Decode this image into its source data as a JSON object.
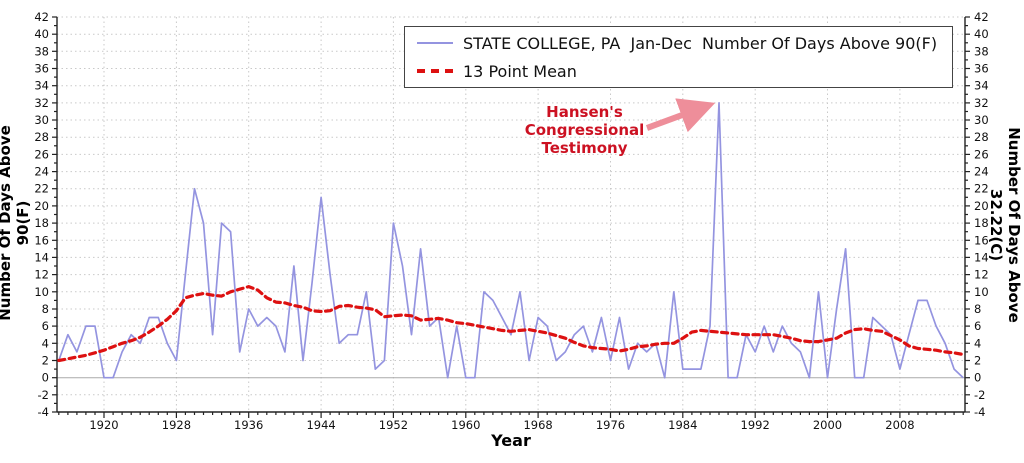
{
  "legend": {
    "series1": "STATE COLLEGE, PA  Jan-Dec  Number Of Days Above 90(F)",
    "series2": "13 Point Mean"
  },
  "annotation": {
    "line1": "Hansen's",
    "line2": "Congressional",
    "line3": "Testimony"
  },
  "axes": {
    "left_title": "Number Of Days Above 90(F)",
    "right_title": "Number Of Days Above 32.22(C)",
    "x_title": "Year",
    "y_min": -4,
    "y_max": 42,
    "y_label_step": 2,
    "x_label_start": 1920,
    "x_label_end": 2008,
    "x_label_step": 8
  },
  "colors": {
    "series_line": "#9494e0",
    "mean_line": "#dd1111",
    "annotation_text": "#cc1122",
    "arrow": "#ee8e9a",
    "grid": "#c9c9c9",
    "zero_line": "#aaaaaa",
    "axis": "#222222",
    "tick_label": "#111111",
    "background": "#ffffff"
  },
  "chart_data": {
    "type": "line",
    "title": "",
    "xlabel": "Year",
    "ylabel_left": "Number Of Days Above 90(F)",
    "ylabel_right": "Number Of Days Above 32.22(C)",
    "xlim": [
      1914.8,
      2015.2
    ],
    "ylim": [
      -4,
      42
    ],
    "grid": true,
    "legend_position": "top-center",
    "x": [
      1915,
      1916,
      1917,
      1918,
      1919,
      1920,
      1921,
      1922,
      1923,
      1924,
      1925,
      1926,
      1927,
      1928,
      1929,
      1930,
      1931,
      1932,
      1933,
      1934,
      1935,
      1936,
      1937,
      1938,
      1939,
      1940,
      1941,
      1942,
      1943,
      1944,
      1945,
      1946,
      1947,
      1948,
      1949,
      1950,
      1951,
      1952,
      1953,
      1954,
      1955,
      1956,
      1957,
      1958,
      1959,
      1960,
      1961,
      1962,
      1963,
      1964,
      1965,
      1966,
      1967,
      1968,
      1969,
      1970,
      1971,
      1972,
      1973,
      1974,
      1975,
      1976,
      1977,
      1978,
      1979,
      1980,
      1981,
      1982,
      1983,
      1984,
      1985,
      1986,
      1987,
      1988,
      1989,
      1990,
      1991,
      1992,
      1993,
      1994,
      1995,
      1996,
      1997,
      1998,
      1999,
      2000,
      2001,
      2002,
      2003,
      2004,
      2005,
      2006,
      2007,
      2008,
      2009,
      2010,
      2011,
      2012,
      2013,
      2014,
      2015
    ],
    "series": [
      {
        "name": "STATE COLLEGE, PA Jan-Dec Number Of Days Above 90(F)",
        "style": "solid",
        "values": [
          2,
          5,
          3,
          6,
          6,
          0,
          0,
          3,
          5,
          4,
          7,
          7,
          4,
          2,
          12,
          22,
          18,
          5,
          18,
          17,
          3,
          8,
          6,
          7,
          6,
          3,
          13,
          2,
          11,
          21,
          12,
          4,
          5,
          5,
          10,
          1,
          2,
          18,
          13,
          5,
          15,
          6,
          7,
          0,
          6,
          0,
          0,
          10,
          9,
          7,
          5,
          10,
          2,
          7,
          6,
          2,
          3,
          5,
          6,
          3,
          7,
          2,
          7,
          1,
          4,
          3,
          4,
          0,
          10,
          1,
          1,
          1,
          6,
          32,
          0,
          0,
          5,
          3,
          6,
          3,
          6,
          4,
          3,
          0,
          10,
          0,
          8,
          15,
          0,
          0,
          7,
          6,
          5,
          1,
          5,
          9,
          9,
          6,
          4,
          1,
          0
        ]
      },
      {
        "name": "13 Point Mean",
        "style": "dashed",
        "values": [
          2.0,
          2.2,
          2.4,
          2.6,
          2.9,
          3.2,
          3.6,
          4.0,
          4.3,
          4.7,
          5.3,
          6.0,
          6.8,
          7.8,
          9.3,
          9.6,
          9.8,
          9.6,
          9.5,
          10.0,
          10.3,
          10.6,
          10.2,
          9.3,
          8.8,
          8.7,
          8.4,
          8.2,
          7.8,
          7.7,
          7.8,
          8.3,
          8.4,
          8.2,
          8.1,
          7.9,
          7.1,
          7.2,
          7.3,
          7.2,
          6.7,
          6.8,
          6.9,
          6.7,
          6.4,
          6.3,
          6.1,
          5.9,
          5.7,
          5.5,
          5.4,
          5.5,
          5.6,
          5.4,
          5.2,
          4.9,
          4.6,
          4.1,
          3.7,
          3.5,
          3.4,
          3.3,
          3.1,
          3.3,
          3.6,
          3.7,
          3.9,
          4.0,
          4.0,
          4.6,
          5.3,
          5.5,
          5.4,
          5.3,
          5.2,
          5.1,
          5.0,
          5.0,
          5.0,
          5.0,
          4.8,
          4.6,
          4.3,
          4.2,
          4.2,
          4.4,
          4.6,
          5.2,
          5.6,
          5.7,
          5.5,
          5.4,
          4.9,
          4.4,
          3.7,
          3.4,
          3.3,
          3.2,
          3.0,
          2.9,
          2.7
        ]
      }
    ],
    "annotation": {
      "text": "Hansen's Congressional Testimony",
      "points_to_x": 1988,
      "points_to_y": 32
    }
  }
}
